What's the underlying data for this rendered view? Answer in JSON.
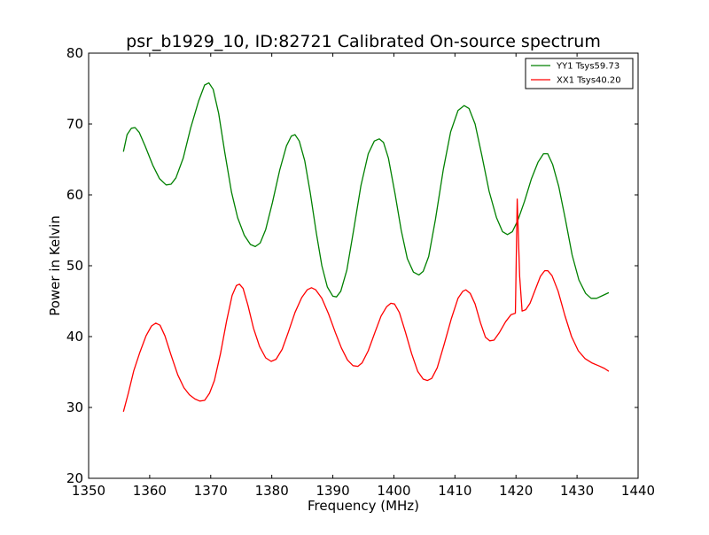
{
  "chart_data": {
    "type": "line",
    "title": "psr_b1929_10, ID:82721 Calibrated On-source spectrum",
    "xlabel": "Frequency (MHz)",
    "ylabel": "Power in Kelvin",
    "xlim": [
      1350,
      1440
    ],
    "ylim": [
      20,
      80
    ],
    "xticks": [
      1350,
      1360,
      1370,
      1380,
      1390,
      1400,
      1410,
      1420,
      1430,
      1440
    ],
    "yticks": [
      20,
      30,
      40,
      50,
      60,
      70,
      80
    ],
    "xtick_labels": [
      "1350",
      "1360",
      "1370",
      "1380",
      "1390",
      "1400",
      "1410",
      "1420",
      "1430",
      "1440"
    ],
    "ytick_labels": [
      "20",
      "30",
      "40",
      "50",
      "60",
      "70",
      "80"
    ],
    "grid": false,
    "legend_position": "top-right",
    "series": [
      {
        "name": "YY1 Tsys59.73",
        "color": "#008000",
        "points": [
          [
            1355.7,
            66.1
          ],
          [
            1356.3,
            68.5
          ],
          [
            1357.0,
            69.4
          ],
          [
            1357.6,
            69.5
          ],
          [
            1358.3,
            68.8
          ],
          [
            1359.3,
            66.8
          ],
          [
            1360.5,
            64.2
          ],
          [
            1361.6,
            62.3
          ],
          [
            1362.7,
            61.4
          ],
          [
            1363.5,
            61.5
          ],
          [
            1364.3,
            62.4
          ],
          [
            1365.5,
            65.2
          ],
          [
            1366.7,
            69.4
          ],
          [
            1368.0,
            73.2
          ],
          [
            1369.0,
            75.5
          ],
          [
            1369.7,
            75.8
          ],
          [
            1370.4,
            74.9
          ],
          [
            1371.3,
            71.5
          ],
          [
            1372.3,
            66.0
          ],
          [
            1373.4,
            60.4
          ],
          [
            1374.4,
            56.8
          ],
          [
            1375.5,
            54.3
          ],
          [
            1376.5,
            53.0
          ],
          [
            1377.3,
            52.7
          ],
          [
            1378.1,
            53.2
          ],
          [
            1379.0,
            55.1
          ],
          [
            1380.1,
            58.9
          ],
          [
            1381.3,
            63.5
          ],
          [
            1382.4,
            66.9
          ],
          [
            1383.2,
            68.3
          ],
          [
            1383.8,
            68.5
          ],
          [
            1384.5,
            67.6
          ],
          [
            1385.4,
            64.8
          ],
          [
            1386.3,
            60.3
          ],
          [
            1387.3,
            54.6
          ],
          [
            1388.2,
            50.0
          ],
          [
            1389.1,
            47.0
          ],
          [
            1390.0,
            45.7
          ],
          [
            1390.6,
            45.6
          ],
          [
            1391.3,
            46.4
          ],
          [
            1392.3,
            49.4
          ],
          [
            1393.4,
            55.0
          ],
          [
            1394.6,
            61.3
          ],
          [
            1395.8,
            65.8
          ],
          [
            1396.8,
            67.6
          ],
          [
            1397.6,
            67.9
          ],
          [
            1398.3,
            67.4
          ],
          [
            1399.1,
            65.2
          ],
          [
            1400.2,
            60.1
          ],
          [
            1401.2,
            55.0
          ],
          [
            1402.2,
            51.0
          ],
          [
            1403.2,
            49.1
          ],
          [
            1404.1,
            48.7
          ],
          [
            1404.8,
            49.2
          ],
          [
            1405.7,
            51.3
          ],
          [
            1406.8,
            56.5
          ],
          [
            1408.1,
            63.6
          ],
          [
            1409.3,
            68.9
          ],
          [
            1410.5,
            71.9
          ],
          [
            1411.5,
            72.6
          ],
          [
            1412.3,
            72.2
          ],
          [
            1413.3,
            70.0
          ],
          [
            1414.4,
            65.6
          ],
          [
            1415.6,
            60.5
          ],
          [
            1416.8,
            56.8
          ],
          [
            1417.8,
            54.8
          ],
          [
            1418.6,
            54.4
          ],
          [
            1419.4,
            54.8
          ],
          [
            1420.3,
            56.4
          ],
          [
            1421.4,
            59.1
          ],
          [
            1422.5,
            62.2
          ],
          [
            1423.6,
            64.6
          ],
          [
            1424.5,
            65.8
          ],
          [
            1425.2,
            65.8
          ],
          [
            1426.0,
            64.3
          ],
          [
            1427.0,
            61.2
          ],
          [
            1428.1,
            56.5
          ],
          [
            1429.2,
            51.5
          ],
          [
            1430.3,
            48.0
          ],
          [
            1431.4,
            46.1
          ],
          [
            1432.3,
            45.4
          ],
          [
            1433.2,
            45.4
          ],
          [
            1434.2,
            45.8
          ],
          [
            1435.2,
            46.2
          ]
        ]
      },
      {
        "name": "XX1 Tsys40.20",
        "color": "#ff0000",
        "points": [
          [
            1355.7,
            29.4
          ],
          [
            1356.5,
            32.0
          ],
          [
            1357.4,
            35.2
          ],
          [
            1358.4,
            37.8
          ],
          [
            1359.4,
            40.1
          ],
          [
            1360.3,
            41.5
          ],
          [
            1361.0,
            41.9
          ],
          [
            1361.7,
            41.6
          ],
          [
            1362.5,
            40.1
          ],
          [
            1363.5,
            37.4
          ],
          [
            1364.6,
            34.6
          ],
          [
            1365.6,
            32.8
          ],
          [
            1366.5,
            31.8
          ],
          [
            1367.4,
            31.2
          ],
          [
            1368.2,
            30.9
          ],
          [
            1369.0,
            31.0
          ],
          [
            1369.8,
            32.0
          ],
          [
            1370.6,
            33.8
          ],
          [
            1371.6,
            37.6
          ],
          [
            1372.6,
            42.2
          ],
          [
            1373.5,
            45.8
          ],
          [
            1374.2,
            47.2
          ],
          [
            1374.7,
            47.4
          ],
          [
            1375.3,
            46.8
          ],
          [
            1376.1,
            44.4
          ],
          [
            1377.0,
            41.2
          ],
          [
            1378.0,
            38.6
          ],
          [
            1379.0,
            37.0
          ],
          [
            1379.9,
            36.5
          ],
          [
            1380.7,
            36.8
          ],
          [
            1381.7,
            38.2
          ],
          [
            1382.7,
            40.6
          ],
          [
            1383.8,
            43.4
          ],
          [
            1384.9,
            45.5
          ],
          [
            1385.8,
            46.6
          ],
          [
            1386.5,
            46.9
          ],
          [
            1387.2,
            46.6
          ],
          [
            1388.2,
            45.4
          ],
          [
            1389.3,
            43.2
          ],
          [
            1390.4,
            40.6
          ],
          [
            1391.4,
            38.4
          ],
          [
            1392.4,
            36.7
          ],
          [
            1393.3,
            35.9
          ],
          [
            1394.1,
            35.8
          ],
          [
            1394.8,
            36.3
          ],
          [
            1395.8,
            38.0
          ],
          [
            1396.9,
            40.6
          ],
          [
            1397.9,
            42.9
          ],
          [
            1398.8,
            44.2
          ],
          [
            1399.5,
            44.7
          ],
          [
            1400.1,
            44.6
          ],
          [
            1400.9,
            43.4
          ],
          [
            1401.9,
            40.6
          ],
          [
            1402.9,
            37.6
          ],
          [
            1403.9,
            35.1
          ],
          [
            1404.8,
            34.0
          ],
          [
            1405.5,
            33.8
          ],
          [
            1406.2,
            34.1
          ],
          [
            1407.1,
            35.6
          ],
          [
            1408.2,
            38.8
          ],
          [
            1409.4,
            42.5
          ],
          [
            1410.5,
            45.4
          ],
          [
            1411.3,
            46.4
          ],
          [
            1411.8,
            46.6
          ],
          [
            1412.5,
            46.1
          ],
          [
            1413.3,
            44.6
          ],
          [
            1414.2,
            41.9
          ],
          [
            1415.0,
            39.9
          ],
          [
            1415.7,
            39.4
          ],
          [
            1416.4,
            39.5
          ],
          [
            1417.3,
            40.6
          ],
          [
            1418.3,
            42.1
          ],
          [
            1419.2,
            43.1
          ],
          [
            1419.9,
            43.3
          ],
          [
            1420.2,
            59.4
          ],
          [
            1420.6,
            48.5
          ],
          [
            1421.0,
            43.6
          ],
          [
            1421.6,
            43.8
          ],
          [
            1422.3,
            44.7
          ],
          [
            1423.1,
            46.5
          ],
          [
            1424.0,
            48.5
          ],
          [
            1424.7,
            49.3
          ],
          [
            1425.2,
            49.3
          ],
          [
            1425.9,
            48.6
          ],
          [
            1426.9,
            46.4
          ],
          [
            1428.0,
            43.0
          ],
          [
            1429.1,
            40.0
          ],
          [
            1430.2,
            38.0
          ],
          [
            1431.3,
            36.9
          ],
          [
            1432.4,
            36.3
          ],
          [
            1433.5,
            35.9
          ],
          [
            1434.5,
            35.5
          ],
          [
            1435.2,
            35.1
          ]
        ]
      }
    ]
  }
}
